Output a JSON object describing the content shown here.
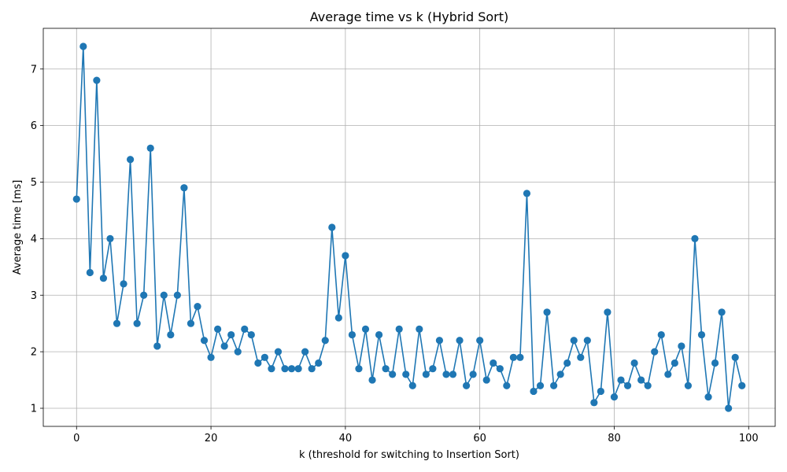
{
  "chart_data": {
    "type": "line",
    "title": "Average time vs k (Hybrid Sort)",
    "xlabel": "k (threshold for switching to Insertion Sort)",
    "ylabel": "Average time [ms]",
    "xlim": [
      -4.95,
      103.95
    ],
    "ylim": [
      0.68,
      7.72
    ],
    "x_ticks": [
      0,
      20,
      40,
      60,
      80,
      100
    ],
    "y_ticks": [
      1,
      2,
      3,
      4,
      5,
      6,
      7
    ],
    "grid": true,
    "legend": "none",
    "color": "#1f77b4",
    "marker": "circle",
    "series": [
      {
        "x": [
          0,
          1,
          2,
          3,
          4,
          5,
          6,
          7,
          8,
          9,
          10,
          11,
          12,
          13,
          14,
          15,
          16,
          17,
          18,
          19,
          20,
          21,
          22,
          23,
          24,
          25,
          26,
          27,
          28,
          29,
          30,
          31,
          32,
          33,
          34,
          35,
          36,
          37,
          38,
          39,
          40,
          41,
          42,
          43,
          44,
          45,
          46,
          47,
          48,
          49,
          50,
          51,
          52,
          53,
          54,
          55,
          56,
          57,
          58,
          59,
          60,
          61,
          62,
          63,
          64,
          65,
          66,
          67,
          68,
          69,
          70,
          71,
          72,
          73,
          74,
          75,
          76,
          77,
          78,
          79,
          80,
          81,
          82,
          83,
          84,
          85,
          86,
          87,
          88,
          89,
          90,
          91,
          92,
          93,
          94,
          95,
          96,
          97,
          98,
          99
        ],
        "values": [
          4.7,
          7.4,
          3.4,
          6.8,
          3.3,
          4.0,
          2.5,
          3.2,
          5.4,
          2.5,
          3.0,
          5.6,
          2.1,
          3.0,
          2.3,
          3.0,
          4.9,
          2.5,
          2.8,
          2.2,
          1.9,
          2.4,
          2.1,
          2.3,
          2.0,
          2.4,
          2.3,
          1.8,
          1.9,
          1.7,
          2.0,
          1.7,
          1.7,
          1.7,
          2.0,
          1.7,
          1.8,
          2.2,
          4.2,
          2.6,
          3.7,
          2.3,
          1.7,
          2.4,
          1.5,
          2.3,
          1.7,
          1.6,
          2.4,
          1.6,
          1.4,
          2.4,
          1.6,
          1.7,
          2.2,
          1.6,
          1.6,
          2.2,
          1.4,
          1.6,
          2.2,
          1.5,
          1.8,
          1.7,
          1.4,
          1.9,
          1.9,
          4.8,
          1.3,
          1.4,
          2.7,
          1.4,
          1.6,
          1.8,
          2.2,
          1.9,
          2.2,
          1.1,
          1.3,
          2.7,
          1.2,
          1.5,
          1.4,
          1.8,
          1.5,
          1.4,
          2.0,
          2.3,
          1.6,
          1.8,
          2.1,
          1.4,
          4.0,
          2.3,
          1.2,
          1.8,
          2.7,
          1.0,
          1.9,
          1.4
        ]
      }
    ]
  }
}
